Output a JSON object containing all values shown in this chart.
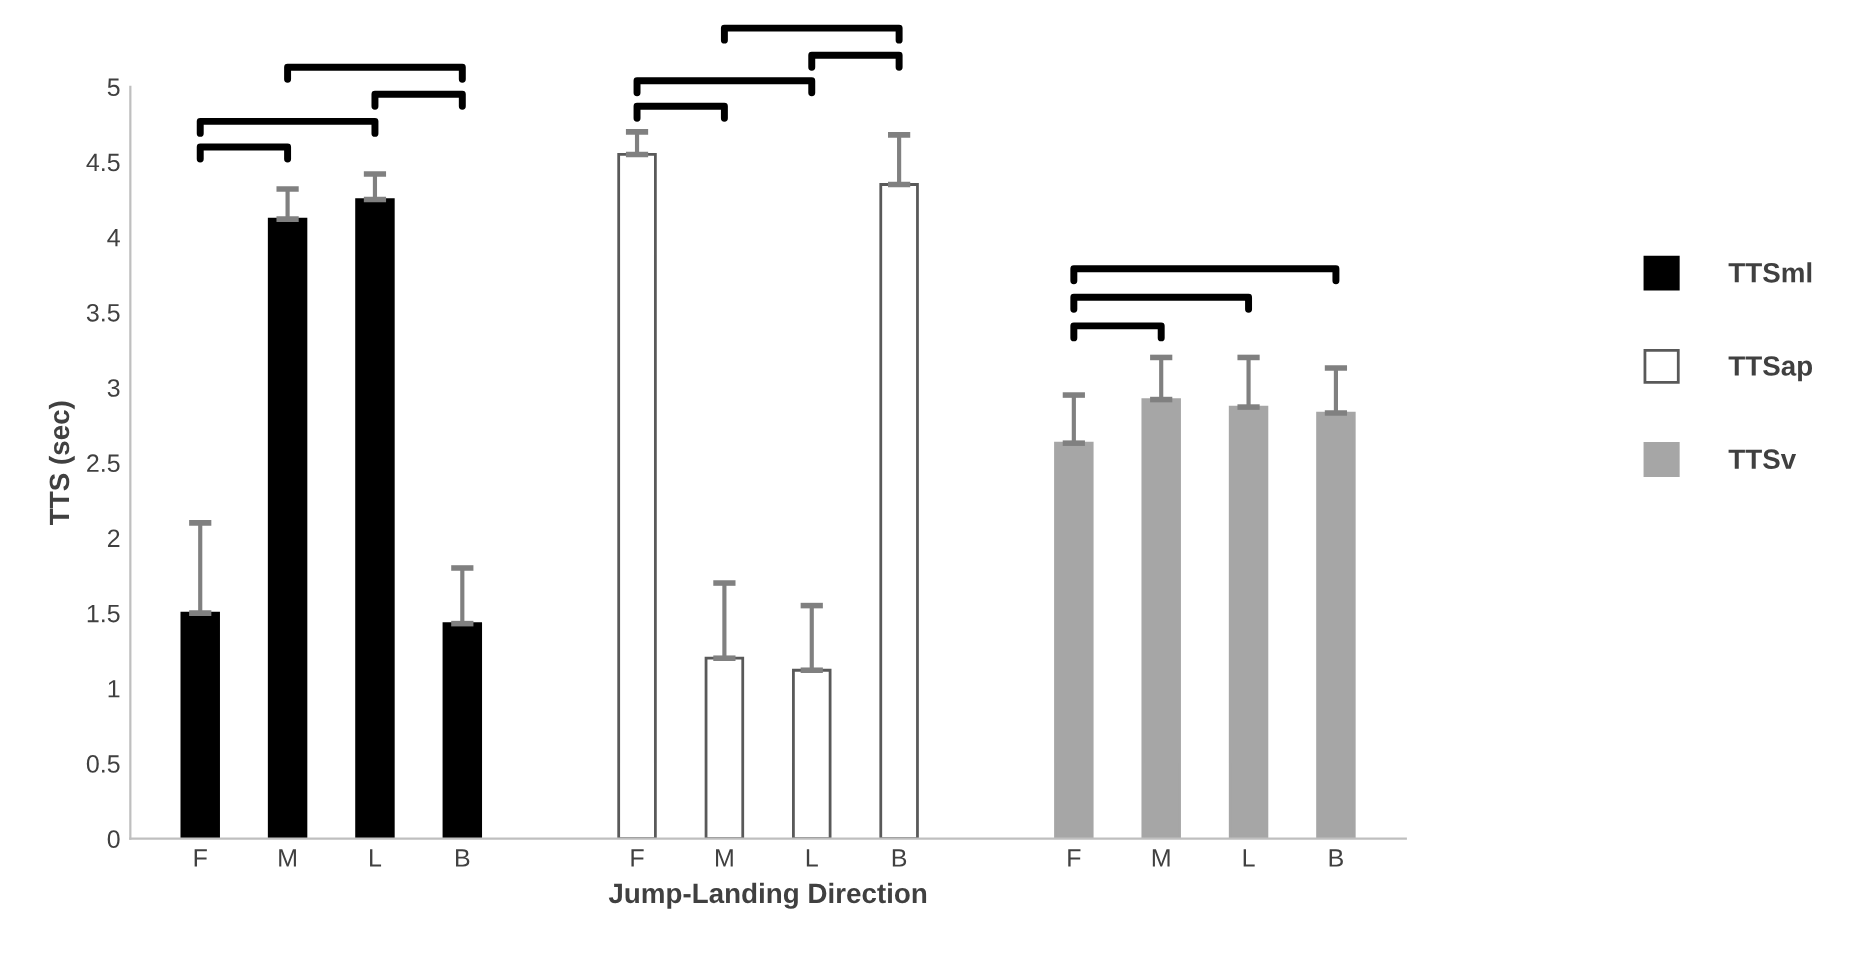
{
  "chart_data": {
    "type": "bar",
    "xlabel": "Jump-Landing Direction",
    "ylabel": "TTS (sec)",
    "categories": [
      "F",
      "M",
      "L",
      "B",
      null,
      "F",
      "M",
      "L",
      "B",
      null,
      "F",
      "M",
      "L",
      "B"
    ],
    "series": [
      {
        "name": "TTSml",
        "color": "#000000",
        "values": [
          1.5,
          4.12,
          4.25,
          1.43,
          null,
          null,
          null,
          null,
          null,
          null,
          null,
          null,
          null,
          null
        ],
        "errors": [
          [
            1.5,
            2.1
          ],
          [
            4.12,
            4.32
          ],
          [
            4.25,
            4.42
          ],
          [
            1.43,
            1.8
          ],
          null,
          null,
          null,
          null,
          null,
          null,
          null,
          null,
          null,
          null
        ]
      },
      {
        "name": "TTSap",
        "color": "#ffffff",
        "values": [
          null,
          null,
          null,
          null,
          null,
          4.55,
          1.2,
          1.12,
          4.35,
          null,
          null,
          null,
          null,
          null
        ],
        "errors": [
          null,
          null,
          null,
          null,
          null,
          [
            4.55,
            4.7
          ],
          [
            1.2,
            1.7
          ],
          [
            1.12,
            1.55
          ],
          [
            4.35,
            4.68
          ],
          null,
          null,
          null,
          null,
          null
        ]
      },
      {
        "name": "TTSv",
        "color": "#a6a6a6",
        "values": [
          null,
          null,
          null,
          null,
          null,
          null,
          null,
          null,
          null,
          null,
          2.63,
          2.92,
          2.87,
          2.83
        ],
        "errors": [
          null,
          null,
          null,
          null,
          null,
          null,
          null,
          null,
          null,
          null,
          [
            2.63,
            2.95
          ],
          [
            2.92,
            3.2
          ],
          [
            2.87,
            3.2
          ],
          [
            2.83,
            3.13
          ]
        ]
      }
    ],
    "ylim": [
      0,
      5
    ],
    "yticks": [
      0,
      0.5,
      1,
      1.5,
      2,
      2.5,
      3,
      3.5,
      4,
      4.5,
      5
    ],
    "grid": false,
    "legend": "right"
  }
}
